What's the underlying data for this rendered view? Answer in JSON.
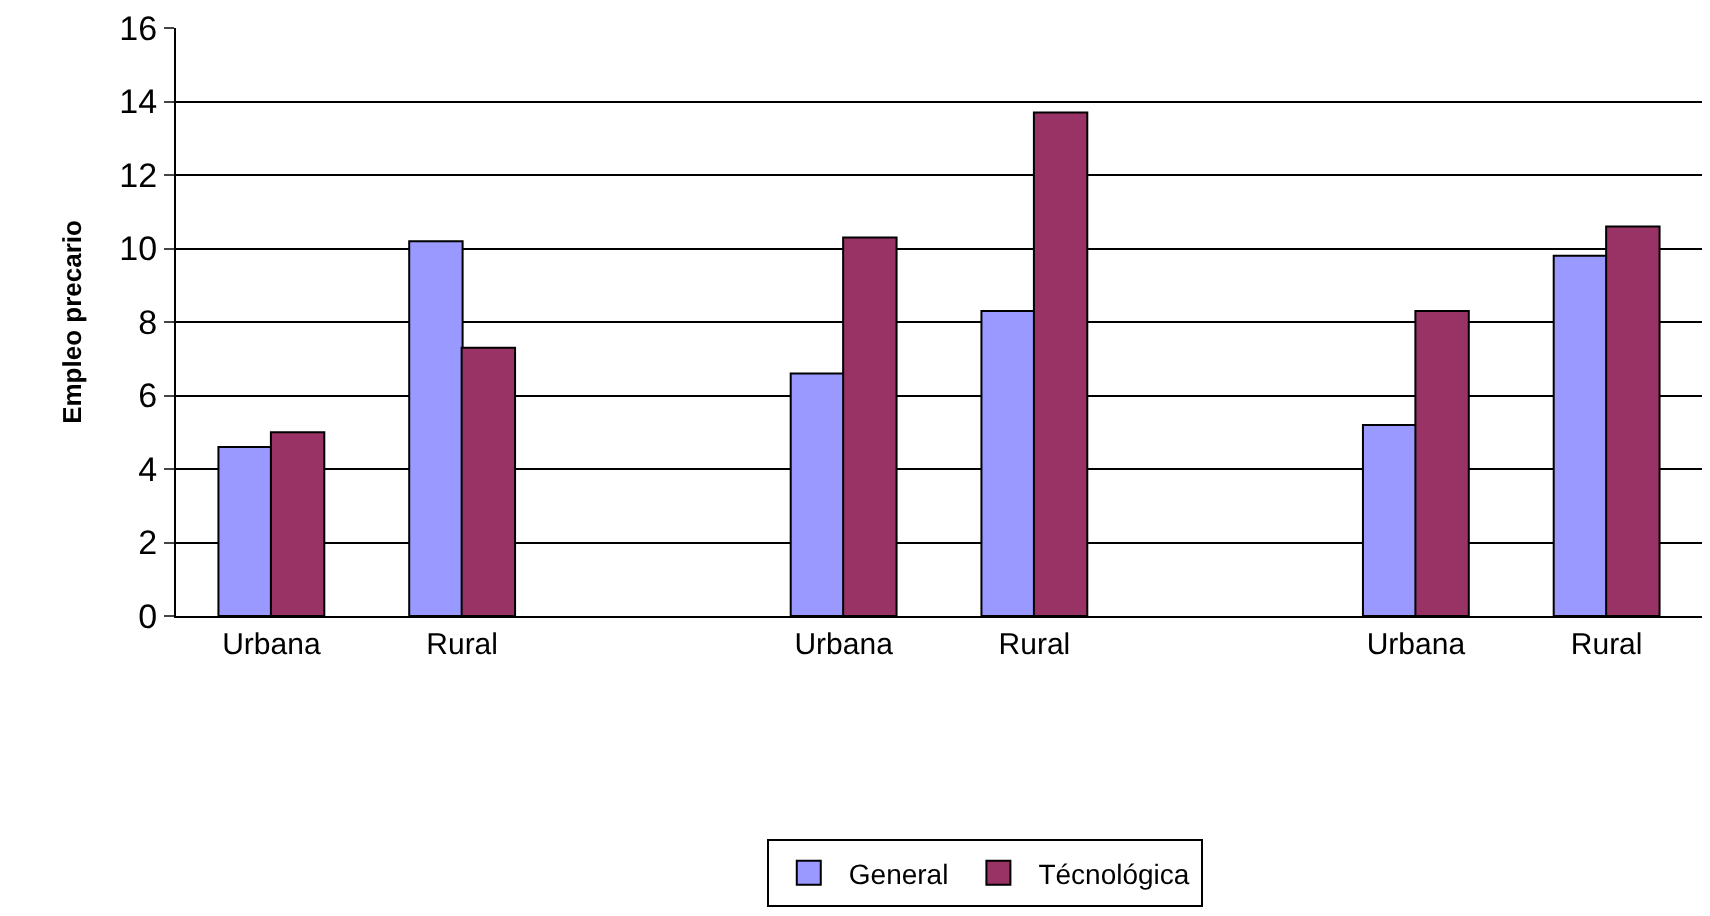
{
  "chart_data": {
    "type": "bar",
    "ylabel": "Empleo precario",
    "categories": [
      "Urbana",
      "Rural",
      null,
      "Urbana",
      "Rural",
      null,
      "Urbana",
      "Rural"
    ],
    "series": [
      {
        "name": "General",
        "color": "#9999ff",
        "values": [
          4.6,
          10.2,
          null,
          6.6,
          8.3,
          null,
          5.2,
          9.8
        ]
      },
      {
        "name": "Técnológica",
        "color": "#993366",
        "values": [
          5.0,
          7.3,
          null,
          10.3,
          13.7,
          null,
          8.3,
          10.6
        ]
      }
    ],
    "ylim": [
      0,
      16
    ],
    "yticks": [
      0,
      2,
      4,
      6,
      8,
      10,
      12,
      14,
      16
    ],
    "grid": "y",
    "legend": "bottom"
  }
}
